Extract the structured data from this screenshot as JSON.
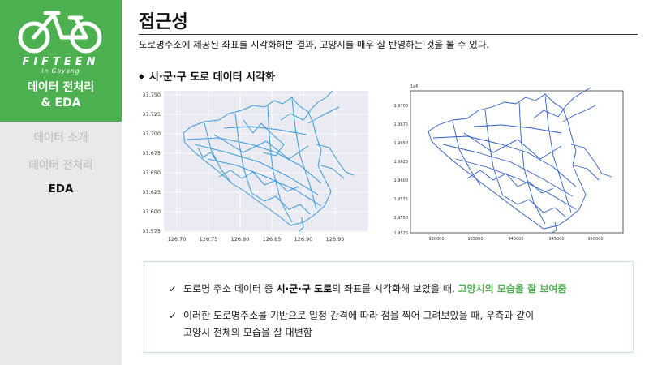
{
  "sidebar": {
    "brand": "FIFTEEN",
    "brand_sub": "in Goyang",
    "section_title_line1": "데이터 전처리",
    "section_title_line2": "& EDA",
    "nav": [
      "데이터 소개",
      "데이터 전처리",
      "EDA"
    ],
    "active_nav": "EDA"
  },
  "main": {
    "title": "접근성",
    "subtitle": "도로명주소에 제공된 좌표를 시각화해본 결과, 고양시를 매우 잘 반영하는 것을 볼 수 있다.",
    "bullet_heading": "시·군·구 도로 데이터 시각화"
  },
  "left_map": {
    "y_ticks": [
      "37.750",
      "37.725",
      "37.700",
      "37.675",
      "37.650",
      "37.625",
      "37.600",
      "37.575"
    ],
    "x_ticks": [
      "126.70",
      "126.75",
      "126.80",
      "126.85",
      "126.90",
      "126.95"
    ]
  },
  "right_map": {
    "offset_label": "1e6",
    "y_ticks": [
      "1.9700",
      "1.9675",
      "1.9650",
      "1.9625",
      "1.9600",
      "1.9575",
      "1.9550",
      "1.9525"
    ],
    "x_ticks": [
      "930000",
      "935000",
      "940000",
      "945000",
      "950000"
    ]
  },
  "info": {
    "line1_a": "도로명 주소 데이터 중 ",
    "line1_b": "시·군·구 도로",
    "line1_c": "의 좌표를 시각화해 보았을 때, ",
    "line1_d": "고양시의 모습을 잘 보여줌",
    "line2": "이러한 도로명주소를 기반으로 일정 간격에 따라 점을 찍어 그려보았을 때, 우측과 같이",
    "line3": "고양시 전체의 모습을 잘 대변함"
  },
  "colors": {
    "accent_green": "#4caf50",
    "sidebar_bg": "#e9e9e9",
    "left_plot_bg": "#eaeaf2",
    "left_roads": "#3a9ad9",
    "right_roads": "#2e5fc4"
  }
}
